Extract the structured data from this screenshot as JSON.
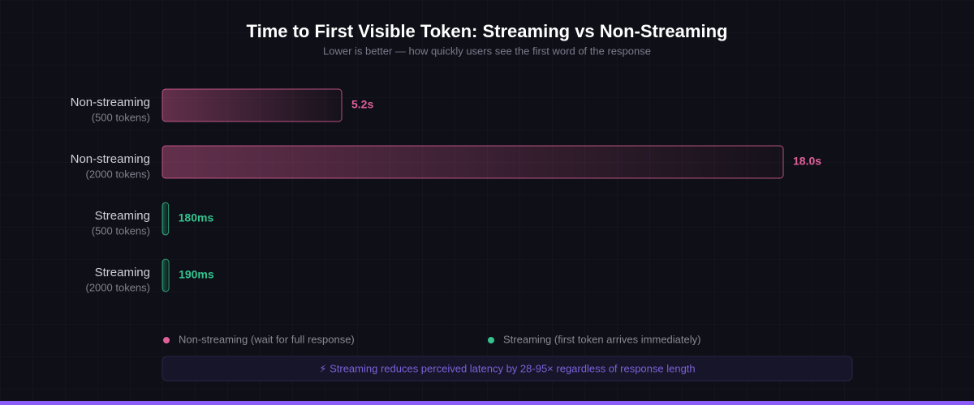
{
  "chart_data": {
    "type": "bar",
    "orientation": "horizontal",
    "title": "Time to First Visible Token: Streaming vs Non-Streaming",
    "subtitle": "Lower is better — how quickly users see the first word of the response",
    "categories": [
      "Non-streaming",
      "Non-streaming",
      "Streaming",
      "Streaming"
    ],
    "subcategories": [
      "(500 tokens)",
      "(2000 tokens)",
      "(500 tokens)",
      "(2000 tokens)"
    ],
    "values": [
      5.2,
      18.0,
      0.18,
      0.19
    ],
    "value_labels": [
      "5.2s",
      "18.0s",
      "180ms",
      "190ms"
    ],
    "colors": [
      "#e0609a",
      "#e0609a",
      "#34c38f",
      "#34c38f"
    ],
    "legend": [
      {
        "name": "Non-streaming (wait for full response)",
        "color": "#e0609a"
      },
      {
        "name": "Streaming (first token arrives immediately)",
        "color": "#34c38f"
      }
    ],
    "note": "⚡ Streaming reduces perceived latency by 28-95× regardless of response length"
  }
}
